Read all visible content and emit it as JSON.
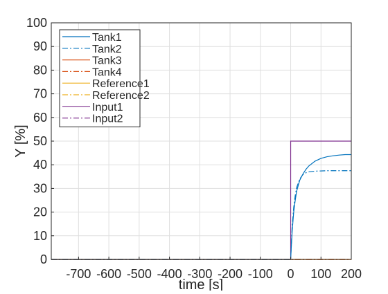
{
  "chart_data": {
    "type": "line",
    "title": "",
    "xlabel": "time [s]",
    "ylabel": "Y [%]",
    "xlim": [
      -790,
      200
    ],
    "ylim": [
      0,
      100
    ],
    "xticks": [
      -700,
      -600,
      -500,
      -400,
      -300,
      -200,
      -100,
      0,
      100,
      200
    ],
    "yticks": [
      0,
      10,
      20,
      30,
      40,
      50,
      60,
      70,
      80,
      90,
      100
    ],
    "grid": true,
    "legend_position": "top-left",
    "series": [
      {
        "name": "Tank1",
        "color": "#0072BD",
        "dash": "solid",
        "x": [
          -790,
          0,
          2,
          5,
          10,
          15,
          20,
          30,
          40,
          50,
          60,
          80,
          100,
          120,
          140,
          160,
          180,
          200
        ],
        "y": [
          0,
          0,
          5,
          12,
          20,
          25,
          29,
          33.5,
          36,
          38,
          39.5,
          41.5,
          42.7,
          43.4,
          43.8,
          44.1,
          44.3,
          44.3
        ]
      },
      {
        "name": "Tank2",
        "color": "#0072BD",
        "dash": "dashdot",
        "x": [
          -790,
          0,
          2,
          5,
          10,
          15,
          20,
          30,
          40,
          50,
          60,
          80,
          100,
          120,
          140,
          160,
          180,
          200
        ],
        "y": [
          0,
          0,
          6,
          14,
          22,
          27,
          30.5,
          34,
          35.8,
          36.6,
          37,
          37.3,
          37.4,
          37.5,
          37.5,
          37.5,
          37.5,
          37.5
        ]
      },
      {
        "name": "Tank3",
        "color": "#D95319",
        "dash": "solid",
        "x": [
          -790,
          200
        ],
        "y": [
          0,
          0
        ]
      },
      {
        "name": "Tank4",
        "color": "#D95319",
        "dash": "dashdot",
        "x": [
          -790,
          200
        ],
        "y": [
          0,
          0
        ]
      },
      {
        "name": "Reference1",
        "color": "#EDB120",
        "dash": "solid",
        "x": [
          -790,
          200
        ],
        "y": [
          0,
          0
        ]
      },
      {
        "name": "Reference2",
        "color": "#EDB120",
        "dash": "dashdot",
        "x": [
          -790,
          200
        ],
        "y": [
          0,
          0
        ]
      },
      {
        "name": "Input1",
        "color": "#7E2F8E",
        "dash": "solid",
        "x": [
          -790,
          0,
          0,
          200
        ],
        "y": [
          0,
          0,
          50,
          50
        ]
      },
      {
        "name": "Input2",
        "color": "#7E2F8E",
        "dash": "dashdot",
        "x": [
          -790,
          200
        ],
        "y": [
          0,
          0
        ]
      }
    ]
  }
}
